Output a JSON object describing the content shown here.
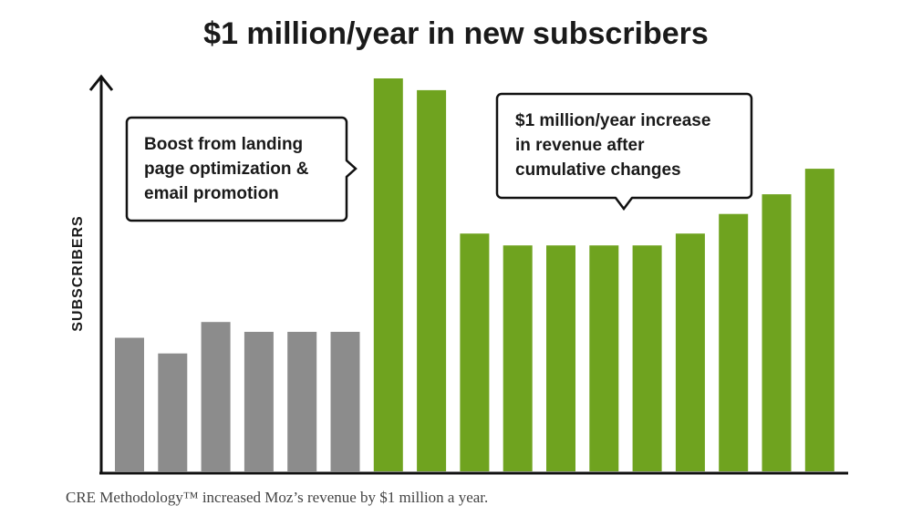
{
  "chart_data": {
    "type": "bar",
    "title": "$1 million/year in new subscribers",
    "ylabel": "SUBSCRIBERS",
    "xlabel": "",
    "ylim": [
      0,
      100
    ],
    "grid": false,
    "bars": [
      {
        "value": 34,
        "color": "#8c8c8c"
      },
      {
        "value": 30,
        "color": "#8c8c8c"
      },
      {
        "value": 38,
        "color": "#8c8c8c"
      },
      {
        "value": 35.5,
        "color": "#8c8c8c"
      },
      {
        "value": 35.5,
        "color": "#8c8c8c"
      },
      {
        "value": 35.5,
        "color": "#8c8c8c"
      },
      {
        "value": 100,
        "color": "#6fa31f"
      },
      {
        "value": 97,
        "color": "#6fa31f"
      },
      {
        "value": 60.5,
        "color": "#6fa31f"
      },
      {
        "value": 57.5,
        "color": "#6fa31f"
      },
      {
        "value": 57.5,
        "color": "#6fa31f"
      },
      {
        "value": 57.5,
        "color": "#6fa31f"
      },
      {
        "value": 57.5,
        "color": "#6fa31f"
      },
      {
        "value": 60.5,
        "color": "#6fa31f"
      },
      {
        "value": 65.5,
        "color": "#6fa31f"
      },
      {
        "value": 70.5,
        "color": "#6fa31f"
      },
      {
        "value": 77,
        "color": "#6fa31f"
      }
    ],
    "annotations": [
      {
        "lines": [
          "Boost from landing",
          "page optimization &",
          "email promotion"
        ]
      },
      {
        "lines": [
          "$1 million/year increase",
          "in revenue after",
          "cumulative changes"
        ]
      }
    ]
  },
  "caption": "CRE Methodology™ increased Moz’s revenue by $1 million a year."
}
